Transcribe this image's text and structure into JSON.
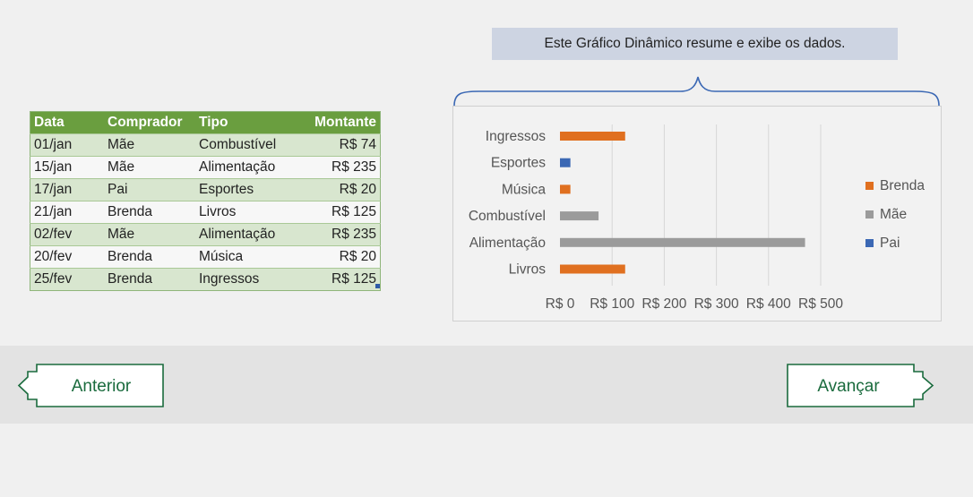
{
  "table": {
    "headers": [
      "Data",
      "Comprador",
      "Tipo",
      "Montante"
    ],
    "rows": [
      [
        "01/jan",
        "Mãe",
        "Combustível",
        "R$ 74"
      ],
      [
        "15/jan",
        "Mãe",
        "Alimentação",
        "R$ 235"
      ],
      [
        "17/jan",
        "Pai",
        "Esportes",
        "R$ 20"
      ],
      [
        "21/jan",
        "Brenda",
        "Livros",
        "R$ 125"
      ],
      [
        "02/fev",
        "Mãe",
        "Alimentação",
        "R$ 235"
      ],
      [
        "20/fev",
        "Brenda",
        "Música",
        "R$ 20"
      ],
      [
        "25/fev",
        "Brenda",
        "Ingressos",
        "R$ 125"
      ]
    ],
    "header_color": "#6a9e3f"
  },
  "caption": "Este Gráfico Dinâmico resume e exibe os dados.",
  "chart_data": {
    "type": "bar",
    "orientation": "horizontal",
    "categories": [
      "Ingressos",
      "Esportes",
      "Música",
      "Combustível",
      "Alimentação",
      "Livros"
    ],
    "series": [
      {
        "name": "Brenda",
        "color": "#e07020",
        "values": [
          125,
          null,
          20,
          null,
          null,
          125
        ]
      },
      {
        "name": "Mãe",
        "color": "#9b9b9b",
        "values": [
          null,
          null,
          null,
          74,
          470,
          null
        ]
      },
      {
        "name": "Pai",
        "color": "#3b68b4",
        "values": [
          null,
          20,
          null,
          null,
          null,
          null
        ]
      }
    ],
    "xlim": [
      0,
      500
    ],
    "x_ticks": [
      "R$ 0",
      "R$ 100",
      "R$ 200",
      "R$ 300",
      "R$ 400",
      "R$ 500"
    ],
    "grid": true,
    "legend": "right"
  },
  "nav": {
    "prev_label": "Anterior",
    "next_label": "Avançar",
    "color": "#1a6b3d"
  }
}
